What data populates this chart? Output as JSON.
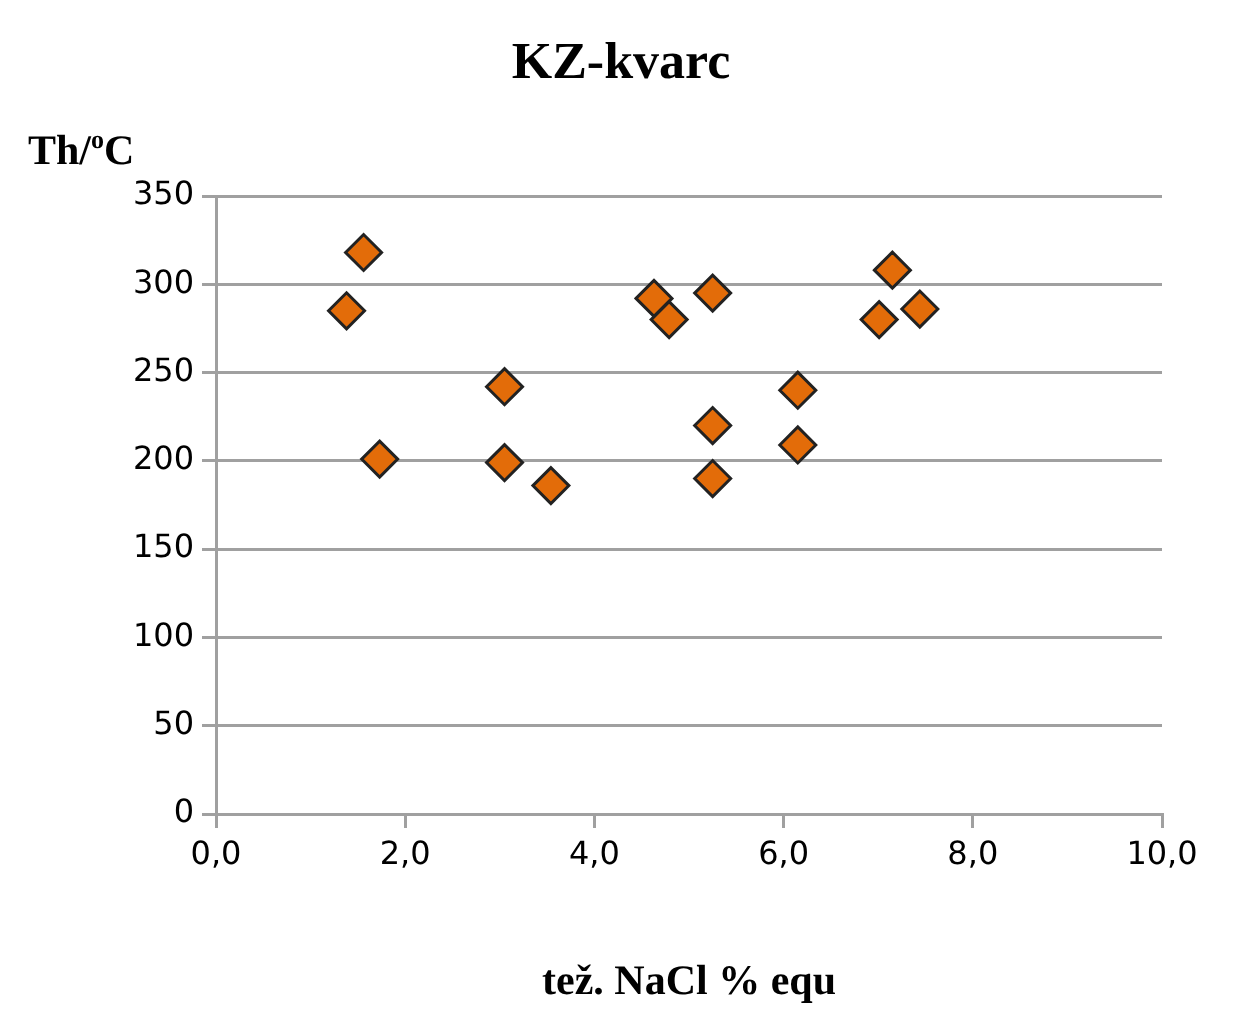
{
  "chart_data": {
    "type": "scatter",
    "title": "KZ-kvarc",
    "xlabel": "tež. NaCl % equ",
    "ylabel": "Th/$^{o}$C",
    "x": [
      1.56,
      1.38,
      1.73,
      3.05,
      3.05,
      3.54,
      4.63,
      4.79,
      5.25,
      5.25,
      5.25,
      6.15,
      6.15,
      7.15,
      7.01,
      7.44
    ],
    "values": [
      318,
      285,
      201,
      242,
      199,
      186,
      292,
      280,
      295,
      220,
      190,
      240,
      209,
      308,
      280,
      286
    ],
    "color": "#e36c09",
    "marker": "diamond",
    "grid": "y",
    "xlim": [
      0,
      10
    ],
    "xticks": [
      {
        "value": 0,
        "label": "0,0"
      },
      {
        "value": 2,
        "label": "2,0"
      },
      {
        "value": 4,
        "label": "4,0"
      },
      {
        "value": 6,
        "label": "6,0"
      },
      {
        "value": 8,
        "label": "8,0"
      },
      {
        "value": 10,
        "label": "10,0"
      }
    ],
    "ylim": [
      0,
      350
    ],
    "yticks": [
      0,
      50,
      100,
      150,
      200,
      250,
      300,
      350
    ]
  }
}
